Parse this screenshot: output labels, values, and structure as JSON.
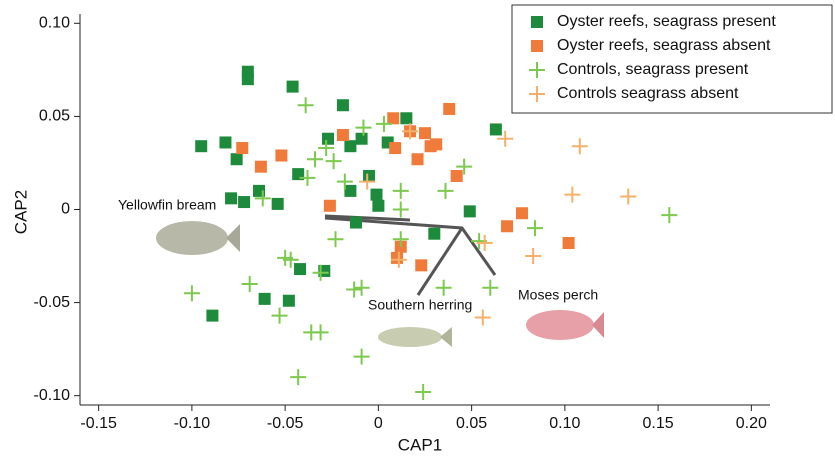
{
  "chart_data": {
    "type": "scatter",
    "xlabel": "CAP1",
    "ylabel": "CAP2",
    "xlim": [
      -0.16,
      0.21
    ],
    "ylim": [
      -0.105,
      0.105
    ],
    "xticks": [
      -0.15,
      {
        "value": -0.1,
        "label": "-0.10"
      },
      -0.05,
      0,
      0.05,
      {
        "value": 0.1,
        "label": "0.10"
      },
      0.15,
      {
        "value": 0.2,
        "label": "0.20"
      }
    ],
    "yticks": [
      {
        "value": 0.1,
        "label": "0.10"
      },
      0.05,
      0,
      -0.05,
      {
        "value": -0.1,
        "label": "-0.10"
      }
    ],
    "legend": "upper right",
    "annotations": [
      "Yellowfin bream",
      "Southern herring",
      "Moses perch"
    ],
    "series": [
      {
        "name": "Oyster reefs, seagrass present",
        "color": "#1e8a3c",
        "marker": "square",
        "x": [
          -0.07,
          -0.07,
          -0.046,
          -0.095,
          -0.082,
          -0.076,
          -0.079,
          -0.072,
          -0.064,
          -0.054,
          -0.043,
          -0.027,
          -0.019,
          -0.015,
          -0.009,
          -0.005,
          -0.001,
          -0.015,
          0.0,
          0.015,
          0.005,
          0.03,
          0.049,
          0.063,
          -0.061,
          -0.048,
          -0.089,
          -0.029,
          -0.042,
          -0.012
        ],
        "y": [
          0.074,
          0.07,
          0.066,
          0.034,
          0.036,
          0.027,
          0.006,
          0.004,
          0.01,
          0.003,
          0.019,
          0.038,
          0.056,
          0.034,
          0.038,
          0.018,
          0.008,
          0.01,
          0.002,
          0.049,
          0.036,
          -0.013,
          -0.001,
          0.043,
          -0.048,
          -0.049,
          -0.057,
          -0.033,
          -0.032,
          -0.007
        ]
      },
      {
        "name": "Oyster reefs, seagrass absent",
        "color": "#f07a3a",
        "marker": "square",
        "x": [
          -0.073,
          -0.063,
          -0.052,
          -0.019,
          -0.026,
          0.008,
          0.009,
          0.017,
          0.025,
          0.028,
          0.031,
          0.038,
          0.042,
          0.021,
          0.077,
          0.069,
          0.102,
          0.023,
          0.01,
          0.012
        ],
        "y": [
          0.033,
          0.023,
          0.029,
          0.04,
          0.002,
          0.049,
          0.033,
          0.042,
          0.041,
          0.034,
          0.035,
          0.054,
          0.018,
          0.027,
          -0.002,
          -0.009,
          -0.018,
          -0.03,
          -0.026,
          -0.02
        ]
      },
      {
        "name": "Controls, seagrass present",
        "color": "#7cc94e",
        "marker": "plus",
        "x": [
          -0.039,
          -0.062,
          -0.1,
          -0.069,
          -0.047,
          -0.05,
          -0.053,
          -0.036,
          -0.031,
          -0.043,
          -0.009,
          -0.013,
          -0.009,
          -0.023,
          -0.031,
          -0.034,
          -0.028,
          -0.024,
          -0.018,
          -0.008,
          0.003,
          0.012,
          0.012,
          0.012,
          0.036,
          0.046,
          0.054,
          0.06,
          0.084,
          0.024,
          0.156,
          -0.038,
          0.035
        ],
        "y": [
          0.056,
          0.006,
          -0.045,
          -0.04,
          -0.027,
          -0.026,
          -0.057,
          -0.066,
          -0.066,
          -0.09,
          -0.079,
          -0.043,
          -0.042,
          -0.016,
          -0.034,
          0.027,
          0.033,
          0.026,
          0.015,
          0.044,
          0.046,
          0.01,
          0.0,
          -0.016,
          0.01,
          0.023,
          -0.017,
          -0.042,
          -0.01,
          -0.098,
          -0.003,
          0.017,
          -0.042
        ]
      },
      {
        "name": "Controls seagrass absent",
        "color": "#f5b06a",
        "marker": "plus",
        "x": [
          -0.006,
          0.017,
          0.068,
          0.108,
          0.104,
          0.134,
          0.083,
          0.056,
          0.057,
          0.011
        ],
        "y": [
          0.015,
          0.042,
          0.038,
          0.034,
          0.008,
          0.007,
          -0.025,
          -0.058,
          -0.018,
          -0.027
        ]
      }
    ]
  }
}
